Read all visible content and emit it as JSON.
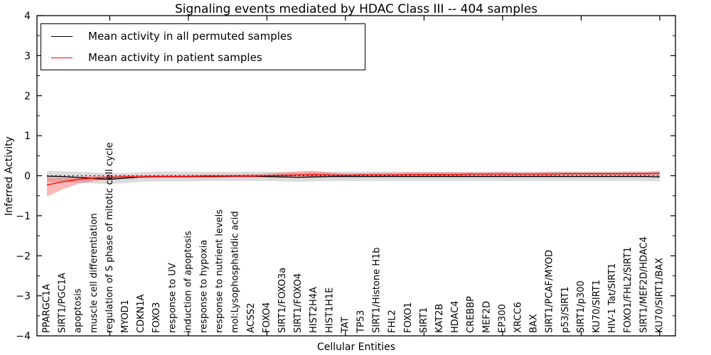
{
  "chart_data": {
    "type": "line",
    "title": "Signaling events mediated by HDAC Class III -- 404 samples",
    "xlabel": "Cellular Entities",
    "ylabel": "Inferred Activity",
    "ylim": [
      -4,
      4
    ],
    "yticks": [
      4,
      3,
      2,
      1,
      0,
      -1,
      -2,
      -3,
      -4
    ],
    "ytick_labels": [
      "4",
      "3",
      "2",
      "1",
      "0",
      "−1",
      "−2",
      "−3",
      "−4"
    ],
    "y_minor_step": 0.5,
    "x_major_tick_indices": [
      4,
      9,
      14,
      19,
      24,
      29,
      34,
      39
    ],
    "grid": false,
    "zero_line": {
      "value": 0,
      "style": "dotted",
      "color": "#000000"
    },
    "legend": {
      "position": "upper-left",
      "entries": [
        {
          "label": "Mean activity in all permuted samples",
          "color": "#000000"
        },
        {
          "label": "Mean activity in patient samples",
          "color": "#ff0000"
        }
      ]
    },
    "categories": [
      "PPARGC1A",
      "SIRT1/PGC1A",
      "apoptosis",
      "muscle cell differentiation",
      "regulation of S phase of mitotic cell cycle",
      "MYOD1",
      "CDKN1A",
      "FOXO3",
      "response to UV",
      "induction of apoptosis",
      "response to hypoxia",
      "response to nutrient levels",
      "mol:Lysophosphatidic acid",
      "ACSS2",
      "FOXO4",
      "SIRT1/FOXO3a",
      "SIRT1/FOXO4",
      "HIST2H4A",
      "HIST1H1E",
      "TAT",
      "TP53",
      "SIRT1/Histone H1b",
      "FHL2",
      "FOXO1",
      "SIRT1",
      "KAT2B",
      "HDAC4",
      "CREBBP",
      "MEF2D",
      "EP300",
      "XRCC6",
      "BAX",
      "SIRT1/PCAF/MYOD",
      "p53/SIRT1",
      "SIRT1/p300",
      "KU70/SIRT1",
      "HIV-1 Tat/SIRT1",
      "FOXO1/FHL2/SIRT1",
      "SIRT1/MEF2D/HDAC4",
      "KU70/SIRT1/BAX"
    ],
    "series": [
      {
        "name": "Mean activity in all permuted samples",
        "color": "#000000",
        "band_opacity": 0.14,
        "values": [
          -0.01,
          -0.02,
          -0.04,
          -0.07,
          -0.09,
          -0.06,
          -0.03,
          -0.02,
          -0.02,
          -0.02,
          -0.02,
          -0.02,
          -0.01,
          -0.01,
          -0.02,
          -0.03,
          -0.04,
          -0.03,
          -0.02,
          -0.02,
          -0.02,
          -0.02,
          -0.02,
          -0.02,
          -0.02,
          -0.02,
          -0.02,
          -0.02,
          -0.02,
          -0.02,
          -0.02,
          -0.02,
          -0.02,
          -0.02,
          -0.02,
          -0.02,
          -0.02,
          -0.02,
          -0.02,
          -0.03
        ],
        "band_upper": [
          0.12,
          0.11,
          0.1,
          0.08,
          0.06,
          0.07,
          0.09,
          0.1,
          0.1,
          0.1,
          0.1,
          0.1,
          0.1,
          0.1,
          0.1,
          0.09,
          0.08,
          0.09,
          0.1,
          0.1,
          0.1,
          0.1,
          0.1,
          0.1,
          0.1,
          0.1,
          0.1,
          0.1,
          0.1,
          0.1,
          0.1,
          0.1,
          0.1,
          0.1,
          0.1,
          0.1,
          0.1,
          0.1,
          0.1,
          0.09
        ],
        "band_lower": [
          -0.15,
          -0.16,
          -0.17,
          -0.19,
          -0.21,
          -0.18,
          -0.15,
          -0.14,
          -0.14,
          -0.14,
          -0.13,
          -0.13,
          -0.13,
          -0.13,
          -0.13,
          -0.14,
          -0.15,
          -0.14,
          -0.13,
          -0.13,
          -0.13,
          -0.13,
          -0.13,
          -0.13,
          -0.13,
          -0.13,
          -0.13,
          -0.13,
          -0.13,
          -0.13,
          -0.13,
          -0.13,
          -0.13,
          -0.13,
          -0.13,
          -0.13,
          -0.13,
          -0.13,
          -0.13,
          -0.14
        ]
      },
      {
        "name": "Mean activity in patient samples",
        "color": "#ff0000",
        "band_opacity": 0.28,
        "values": [
          -0.23,
          -0.15,
          -0.09,
          -0.06,
          -0.04,
          -0.03,
          -0.03,
          -0.02,
          -0.02,
          -0.02,
          -0.01,
          -0.01,
          -0.01,
          -0.01,
          0.0,
          0.01,
          0.02,
          0.03,
          0.02,
          0.01,
          0.02,
          0.02,
          0.02,
          0.03,
          0.03,
          0.03,
          0.03,
          0.04,
          0.04,
          0.04,
          0.04,
          0.04,
          0.04,
          0.05,
          0.05,
          0.05,
          0.05,
          0.05,
          0.05,
          0.06
        ],
        "band_upper": [
          -0.04,
          -0.05,
          -0.03,
          -0.01,
          0.0,
          0.01,
          0.01,
          0.02,
          0.02,
          0.02,
          0.03,
          0.03,
          0.03,
          0.04,
          0.05,
          0.08,
          0.11,
          0.12,
          0.08,
          0.06,
          0.06,
          0.07,
          0.07,
          0.08,
          0.08,
          0.08,
          0.08,
          0.08,
          0.08,
          0.09,
          0.08,
          0.08,
          0.09,
          0.09,
          0.09,
          0.09,
          0.09,
          0.1,
          0.1,
          0.12
        ],
        "band_lower": [
          -0.52,
          -0.34,
          -0.2,
          -0.13,
          -0.09,
          -0.07,
          -0.06,
          -0.06,
          -0.05,
          -0.05,
          -0.05,
          -0.05,
          -0.04,
          -0.05,
          -0.04,
          -0.04,
          -0.04,
          -0.04,
          -0.04,
          -0.03,
          -0.03,
          -0.03,
          -0.02,
          -0.02,
          -0.02,
          -0.02,
          -0.02,
          -0.01,
          -0.01,
          -0.01,
          -0.01,
          -0.01,
          -0.01,
          0.0,
          0.0,
          0.0,
          0.0,
          0.0,
          0.0,
          0.01
        ]
      }
    ]
  }
}
